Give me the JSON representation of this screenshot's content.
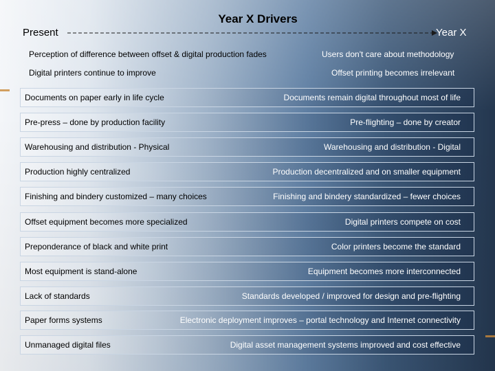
{
  "slide": {
    "title": "Year X Drivers",
    "timeline": {
      "start_label": "Present",
      "end_label": "Year X"
    },
    "header_rows": [
      {
        "left": "Perception of difference between offset & digital production fades",
        "right": "Users don't care about methodology"
      },
      {
        "left": "Digital printers continue to improve",
        "right": "Offset printing becomes irrelevant"
      }
    ],
    "rows": [
      {
        "left": "Documents on paper early in life cycle",
        "right": "Documents remain digital throughout most of life"
      },
      {
        "left": "Pre-press – done by production facility",
        "right": "Pre-flighting – done by creator"
      },
      {
        "left": "Warehousing and distribution - Physical",
        "right": "Warehousing and distribution - Digital"
      },
      {
        "left": "Production highly centralized",
        "right": "Production decentralized and on smaller equipment"
      },
      {
        "left": "Finishing and bindery customized – many choices",
        "right": "Finishing and bindery standardized – fewer choices"
      },
      {
        "left": "Offset equipment becomes more specialized",
        "right": "Digital printers compete on cost"
      },
      {
        "left": "Preponderance of black and white print",
        "right": "Color printers become the standard"
      },
      {
        "left": "Most equipment is stand-alone",
        "right": "Equipment becomes more interconnected"
      },
      {
        "left": "Lack of standards",
        "right": "Standards developed / improved for design and  pre-flighting"
      },
      {
        "left": "Paper forms systems",
        "right": "Electronic deployment improves – portal technology and Internet connectivity"
      },
      {
        "left": "Unmanaged digital files",
        "right": "Digital asset management systems improved and cost effective"
      }
    ]
  }
}
